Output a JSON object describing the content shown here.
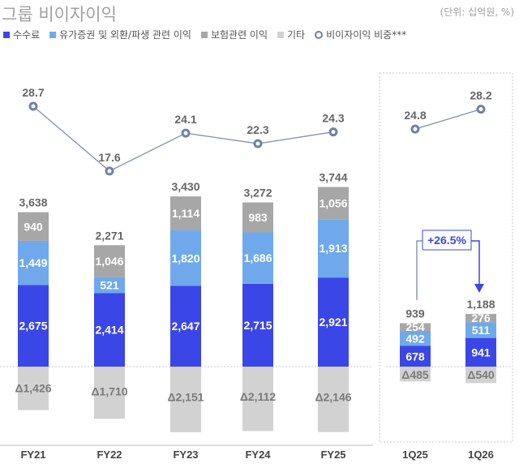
{
  "title": "그룹 비이자이익",
  "unit": "(단위: 십억원, %)",
  "legend": [
    {
      "label": "수수료",
      "color": "#3b46e6"
    },
    {
      "label": "유가증권 및 외환/파생 관련 이익",
      "color": "#6fa9ec"
    },
    {
      "label": "보험관련 이익",
      "color": "#a7a7a7"
    },
    {
      "label": "기타",
      "color": "#d2d2d2"
    },
    {
      "label": "비이자이익 비중***",
      "color": "#7080a8"
    }
  ],
  "chart_data": {
    "type": "bar",
    "stacked": true,
    "categories": [
      "FY21",
      "FY22",
      "FY23",
      "FY24",
      "FY25",
      "1Q25",
      "1Q26"
    ],
    "series": [
      {
        "name": "수수료",
        "values": [
          2675,
          2414,
          2647,
          2715,
          2921,
          678,
          941
        ],
        "labels": [
          "2,675",
          "2,414",
          "2,647",
          "2,715",
          "2,921",
          "678",
          "941"
        ]
      },
      {
        "name": "유가증권 및 외환/파생 관련 이익",
        "values": [
          1449,
          521,
          1820,
          1686,
          1913,
          492,
          511
        ],
        "labels": [
          "1,449",
          "521",
          "1,820",
          "1,686",
          "1,913",
          "492",
          "511"
        ]
      },
      {
        "name": "보험관련 이익",
        "values": [
          940,
          1046,
          1114,
          983,
          1056,
          254,
          276
        ],
        "labels": [
          "940",
          "1,046",
          "1,114",
          "983",
          "1,056",
          "254",
          "276"
        ]
      },
      {
        "name": "기타",
        "values": [
          -1426,
          -1710,
          -2151,
          -2112,
          -2146,
          -485,
          -540
        ],
        "labels": [
          "Δ1,426",
          "Δ1,710",
          "Δ2,151",
          "Δ2,112",
          "Δ2,146",
          "Δ485",
          "Δ540"
        ]
      }
    ],
    "totals": [
      "3,638",
      "2,271",
      "3,430",
      "3,272",
      "3,744",
      "939",
      "1,188"
    ],
    "line": {
      "name": "비이자이익 비중***",
      "values": [
        28.7,
        17.6,
        24.1,
        22.3,
        24.3,
        24.8,
        28.2
      ],
      "labels": [
        "28.7",
        "17.6",
        "24.1",
        "22.3",
        "24.3",
        "24.8",
        "28.2"
      ],
      "segments": [
        [
          0,
          4
        ],
        [
          5,
          6
        ]
      ]
    },
    "annotation": {
      "label": "+26.5%",
      "from": "1Q25",
      "to": "1Q26"
    },
    "grid": false,
    "legend_position": "top-left"
  }
}
